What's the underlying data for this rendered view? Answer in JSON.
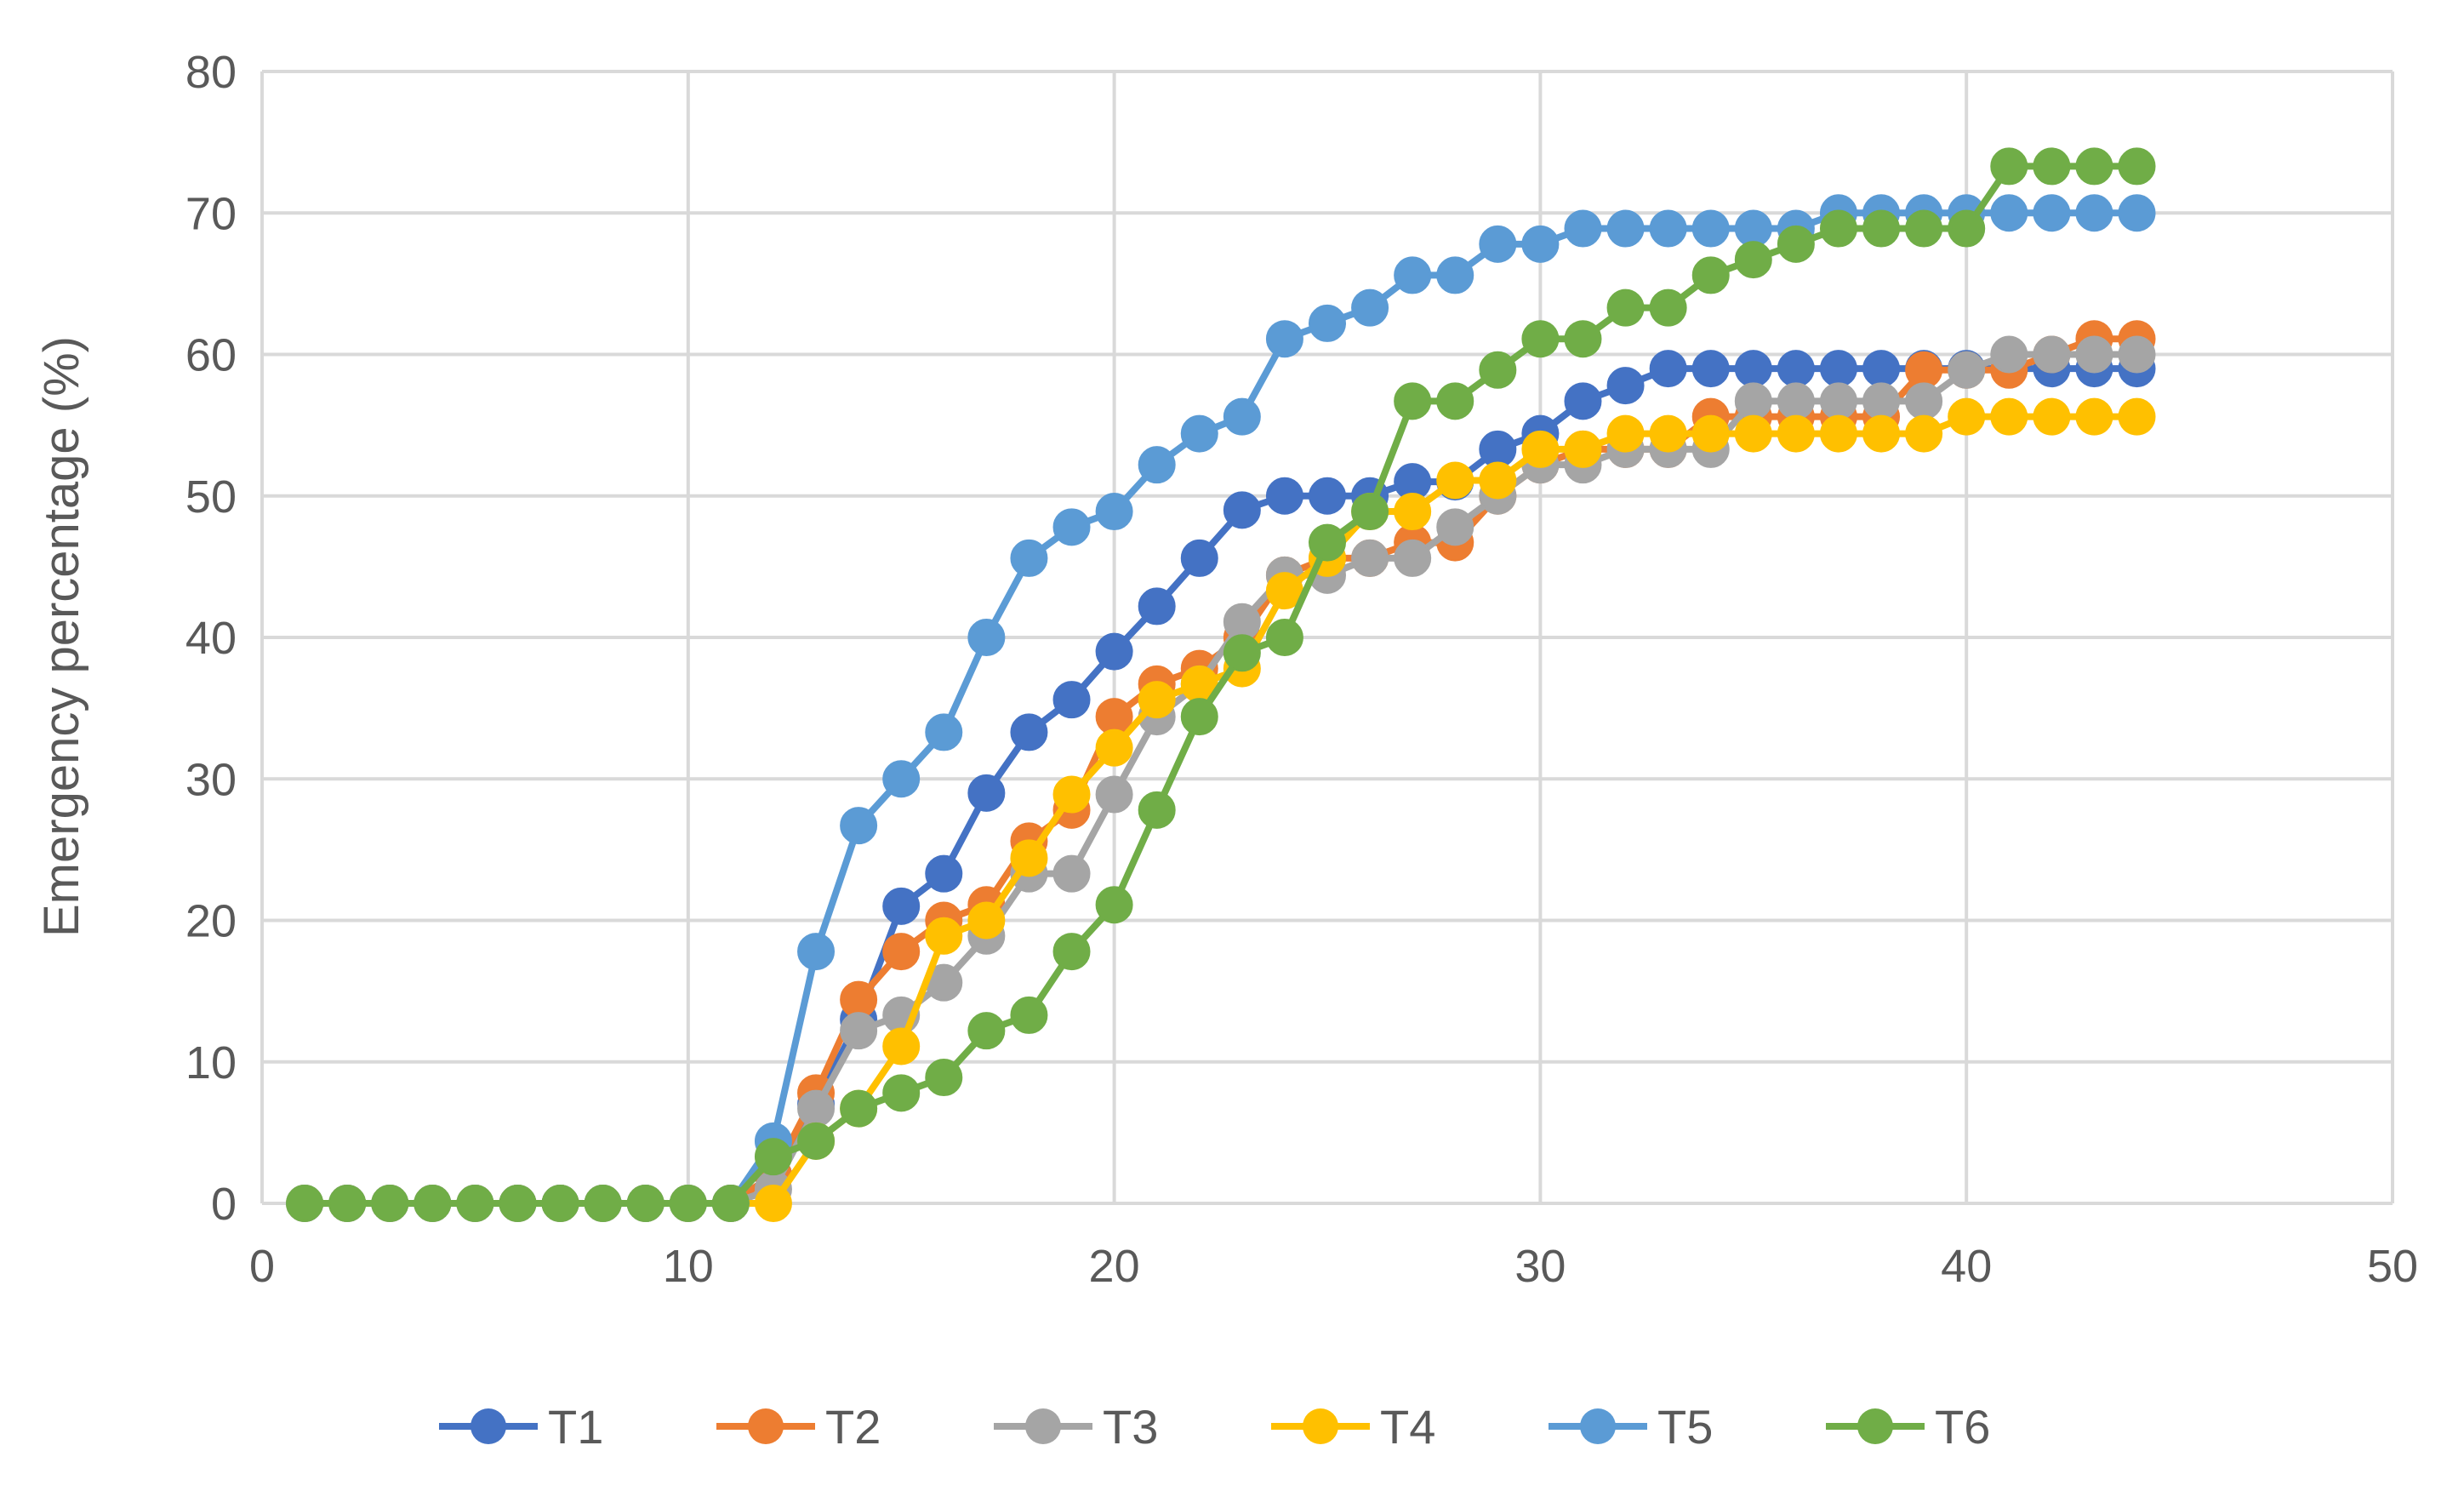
{
  "chart_data": {
    "type": "line",
    "title": "",
    "xlabel": "",
    "ylabel": "Emergency percentage (%)",
    "xlim": [
      0,
      50
    ],
    "ylim": [
      0,
      80
    ],
    "xticks": [
      "0",
      "10",
      "20",
      "30",
      "40",
      "50"
    ],
    "yticks": [
      "0",
      "10",
      "20",
      "30",
      "40",
      "50",
      "60",
      "70",
      "80"
    ],
    "grid": true,
    "legend_position": "bottom",
    "x": [
      1,
      2,
      3,
      4,
      5,
      6,
      7,
      8,
      9,
      10,
      11,
      12,
      13,
      14,
      15,
      16,
      17,
      18,
      19,
      20,
      21,
      22,
      23,
      24,
      25,
      26,
      27,
      28,
      29,
      30,
      31,
      32,
      33,
      34,
      35,
      36,
      37,
      38,
      39,
      40,
      41,
      42,
      43,
      44
    ],
    "series": [
      {
        "name": "T1",
        "color": "#4472C4",
        "values": [
          0,
          0,
          0,
          0,
          0,
          0,
          0,
          0,
          0,
          0,
          0,
          2,
          7,
          13,
          21,
          23.3,
          29,
          33.3,
          35.6,
          39,
          42.2,
          45.6,
          49,
          50,
          50,
          50,
          51,
          51,
          53.3,
          54.4,
          56.7,
          57.8,
          59,
          59,
          59,
          59,
          59,
          59,
          59,
          59,
          59,
          59,
          59,
          59
        ]
      },
      {
        "name": "T2",
        "color": "#ED7D31",
        "values": [
          0,
          0,
          0,
          0,
          0,
          0,
          0,
          0,
          0,
          0,
          0,
          2,
          7.8,
          14.4,
          17.8,
          20,
          21.1,
          25.6,
          27.8,
          34.4,
          36.7,
          37.8,
          40,
          44.4,
          45.6,
          45.6,
          46.7,
          46.7,
          50,
          52.2,
          53.3,
          53.3,
          53.3,
          55.6,
          55.6,
          55.6,
          55.6,
          55.6,
          58.9,
          58.9,
          58.9,
          60,
          61.1,
          61.1
        ]
      },
      {
        "name": "T3",
        "color": "#A5A5A5",
        "values": [
          0,
          0,
          0,
          0,
          0,
          0,
          0,
          0,
          0,
          0,
          0,
          1,
          6.7,
          12.2,
          13.3,
          15.6,
          18.9,
          23.3,
          23.3,
          28.9,
          34.4,
          36.7,
          41.1,
          44.4,
          44.4,
          45.6,
          45.6,
          47.8,
          50,
          52.2,
          52.2,
          53.3,
          53.3,
          53.3,
          56.7,
          56.7,
          56.7,
          56.7,
          56.7,
          58.9,
          60,
          60,
          60,
          60
        ]
      },
      {
        "name": "T4",
        "color": "#FFC000",
        "values": [
          0,
          0,
          0,
          0,
          0,
          0,
          0,
          0,
          0,
          0,
          0,
          0,
          4.4,
          6.7,
          11.1,
          18.9,
          20,
          24.4,
          28.9,
          32.2,
          35.6,
          36.7,
          37.8,
          43.3,
          45.6,
          48.9,
          48.9,
          51.1,
          51.1,
          53.3,
          53.3,
          54.4,
          54.4,
          54.4,
          54.4,
          54.4,
          54.4,
          54.4,
          54.4,
          55.6,
          55.6,
          55.6,
          55.6,
          55.6
        ]
      },
      {
        "name": "T5",
        "color": "#5B9BD5",
        "values": [
          0,
          0,
          0,
          0,
          0,
          0,
          0,
          0,
          0,
          0,
          0,
          4.4,
          17.8,
          26.7,
          30,
          33.3,
          40,
          45.6,
          47.8,
          48.9,
          52.2,
          54.4,
          55.6,
          61.1,
          62.2,
          63.3,
          65.6,
          65.6,
          67.8,
          67.8,
          68.9,
          68.9,
          68.9,
          68.9,
          68.9,
          68.9,
          70,
          70,
          70,
          70,
          70,
          70,
          70,
          70
        ]
      },
      {
        "name": "T6",
        "color": "#70AD47",
        "values": [
          0,
          0,
          0,
          0,
          0,
          0,
          0,
          0,
          0,
          0,
          0,
          3.3,
          4.4,
          6.7,
          7.8,
          8.9,
          12.2,
          13.3,
          17.8,
          21.1,
          27.8,
          34.4,
          38.9,
          40,
          46.7,
          48.9,
          56.7,
          56.7,
          58.9,
          61.1,
          61.1,
          63.3,
          63.3,
          65.6,
          66.7,
          67.8,
          68.9,
          68.9,
          68.9,
          68.9,
          73.3,
          73.3,
          73.3,
          73.3
        ]
      }
    ]
  }
}
